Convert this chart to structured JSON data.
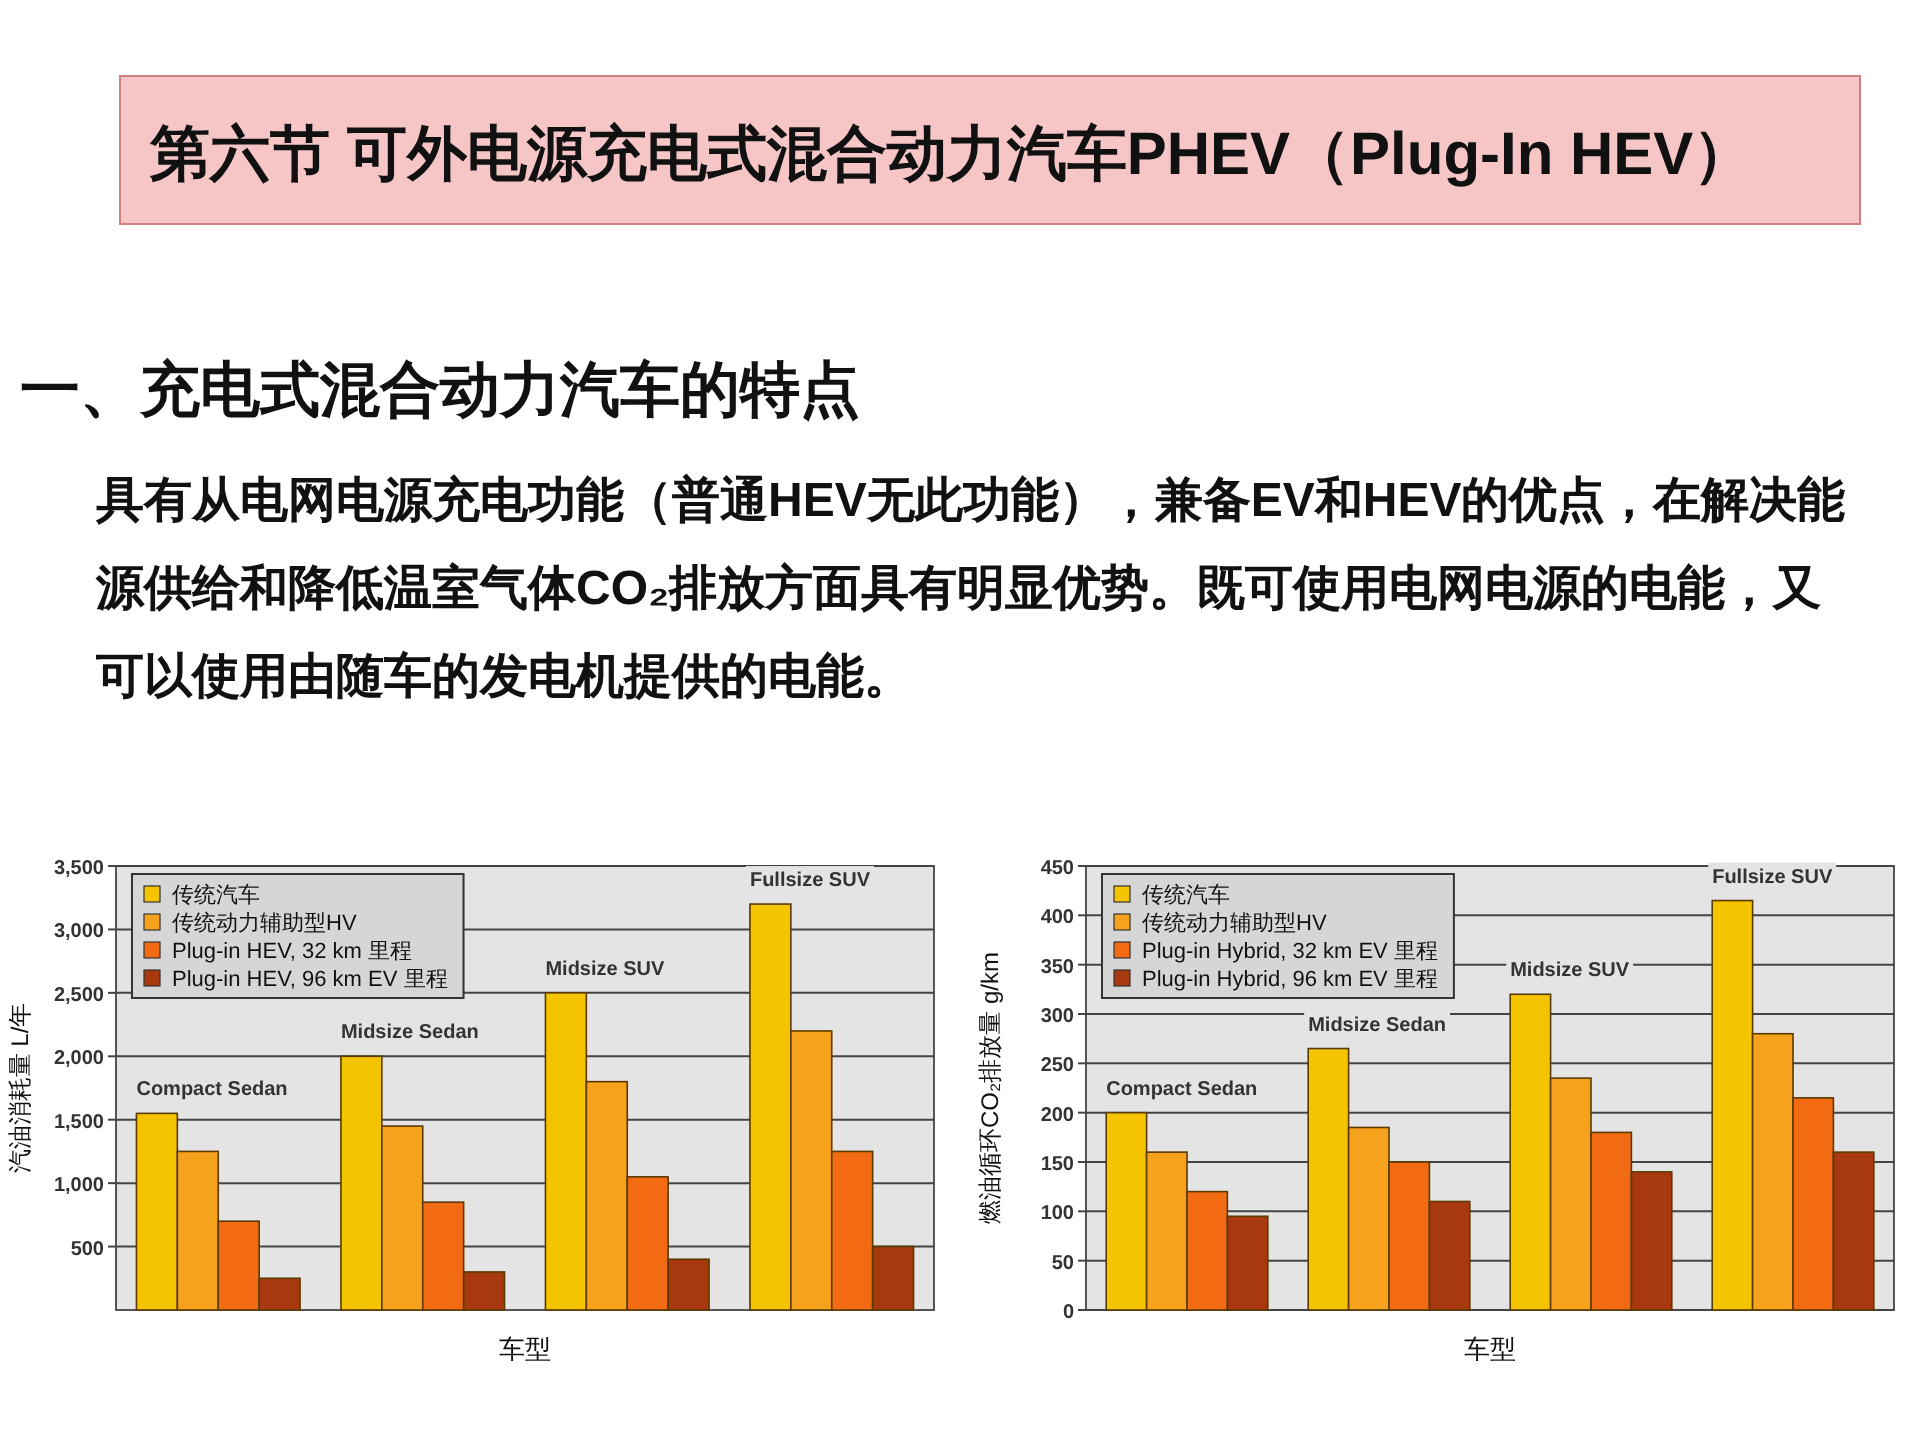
{
  "chart_data": [
    {
      "type": "other",
      "title": "第六节  可外电源充电式混合动力汽车PHEV（Plug-In HEV）",
      "subtitle": "一、充电式混合动力汽车的特点",
      "annotations": [
        "具有从电网电源充电功能（普通HEV无此功能），兼备EV和HEV的优点，在解决能源供给和降低温室气体CO₂排放方面具有明显优势。既可使用电网电源的电能，又可以使用由随车的发电机提供的电能。"
      ]
    },
    {
      "type": "bar",
      "categories": [
        "Compact Sedan",
        "Midsize Sedan",
        "Midsize SUV",
        "Fullsize SUV"
      ],
      "xlabel": "车型",
      "ylabel": "汽油消耗量 L/年",
      "ylim": [
        0,
        3500
      ],
      "yticks": [
        500,
        {
          "value": 1000,
          "label": "1,000"
        },
        {
          "value": 1500,
          "label": "1,500"
        },
        {
          "value": 2000,
          "label": "2,000"
        },
        {
          "value": 2500,
          "label": "2,500"
        },
        {
          "value": 3000,
          "label": "3,000"
        },
        {
          "value": 3500,
          "label": "3,500"
        }
      ],
      "grid": "y",
      "legend": "top left",
      "series": [
        {
          "name": "传统汽车",
          "color": "#f5c400",
          "values": [
            1550,
            2000,
            2500,
            3200
          ]
        },
        {
          "name": "传统动力辅助型HV",
          "color": "#f7a21c",
          "values": [
            1250,
            1450,
            1800,
            2200
          ]
        },
        {
          "name": "Plug-in HEV, 32 km 里程",
          "color": "#f26a12",
          "values": [
            700,
            850,
            1050,
            1250
          ]
        },
        {
          "name": "Plug-in HEV, 96 km EV 里程",
          "color": "#a8380e",
          "values": [
            250,
            300,
            400,
            500
          ]
        }
      ]
    },
    {
      "type": "bar",
      "categories": [
        "Compact Sedan",
        "Midsize Sedan",
        "Midsize SUV",
        "Fullsize SUV"
      ],
      "xlabel": "车型",
      "ylabel": "燃油循环CO₂排放量 g/km",
      "ylim": [
        0,
        450
      ],
      "yticks": [
        0,
        50,
        100,
        150,
        200,
        250,
        300,
        350,
        400,
        450
      ],
      "grid": "y",
      "legend": "top left",
      "series": [
        {
          "name": "传统汽车",
          "color": "#f5c400",
          "values": [
            200,
            265,
            320,
            415
          ]
        },
        {
          "name": "传统动力辅助型HV",
          "color": "#f7a21c",
          "values": [
            160,
            185,
            235,
            280
          ]
        },
        {
          "name": "Plug-in Hybrid, 32 km EV 里程",
          "color": "#f26a12",
          "values": [
            120,
            150,
            180,
            215
          ]
        },
        {
          "name": "Plug-in Hybrid, 96 km EV 里程",
          "color": "#a8380e",
          "values": [
            95,
            110,
            140,
            160
          ]
        }
      ]
    }
  ]
}
